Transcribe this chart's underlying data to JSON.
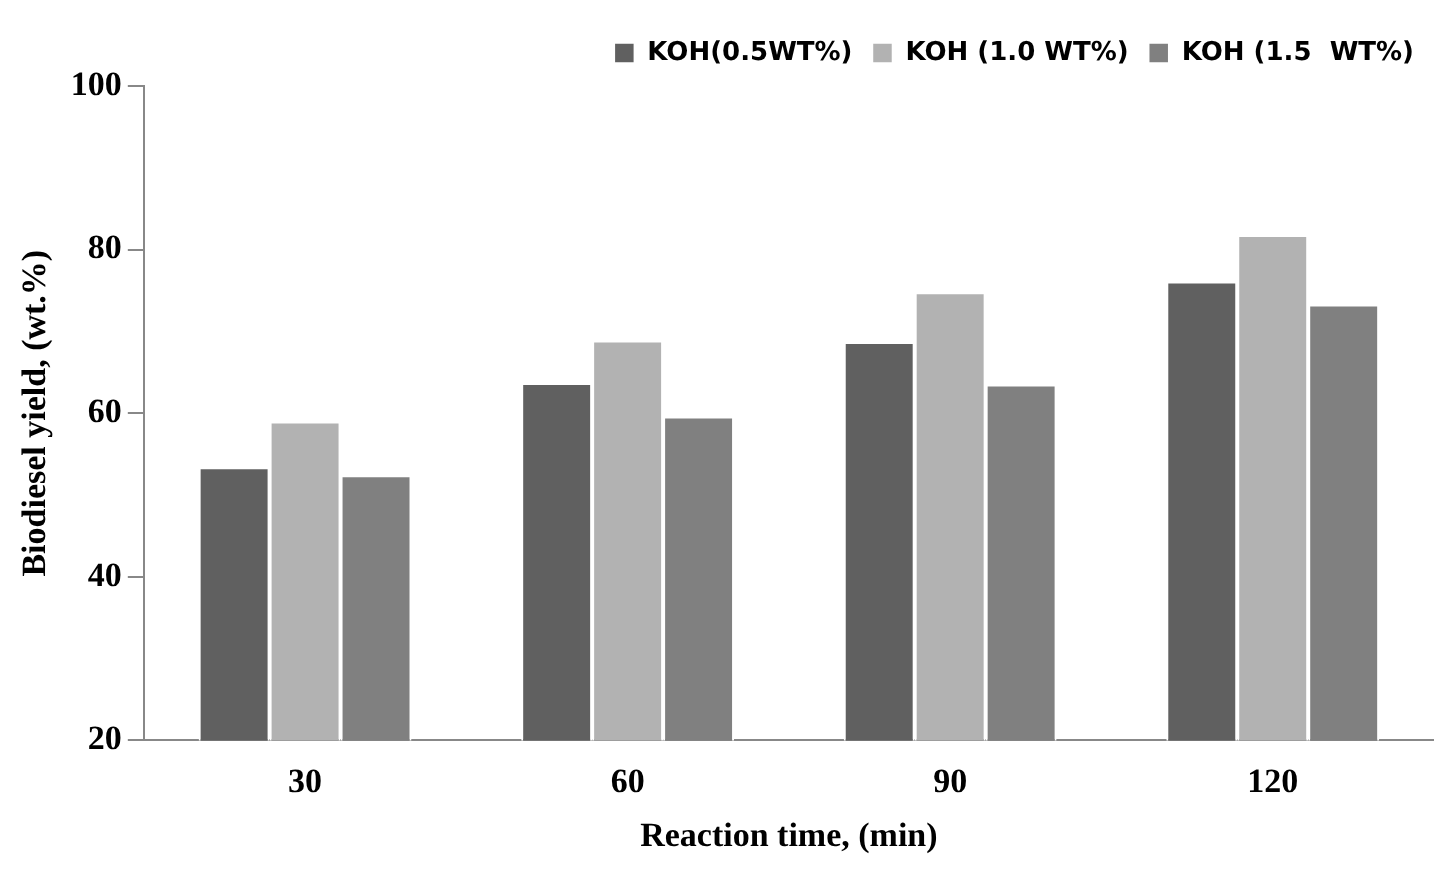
{
  "chart_data": {
    "type": "bar",
    "xlabel": "Reaction time, (min)",
    "ylabel": "Biodiesel yield, (wt.%)",
    "categories": [
      "30",
      "60",
      "90",
      "120"
    ],
    "series": [
      {
        "name": "KOH(0.5WT%)",
        "color": "#606060",
        "values": [
          53.4,
          63.7,
          68.7,
          76.1
        ]
      },
      {
        "name": "KOH (1.0 WT%)",
        "color": "#b2b2b2",
        "values": [
          59,
          68.9,
          74.8,
          81.8
        ]
      },
      {
        "name": "KOH (1.5  WT%)",
        "color": "#808080",
        "values": [
          52.4,
          59.6,
          63.5,
          73.3
        ]
      }
    ],
    "ylim": [
      20,
      100
    ],
    "yticks": [
      20,
      40,
      60,
      80,
      100
    ],
    "grid": false,
    "legend": "top right"
  }
}
